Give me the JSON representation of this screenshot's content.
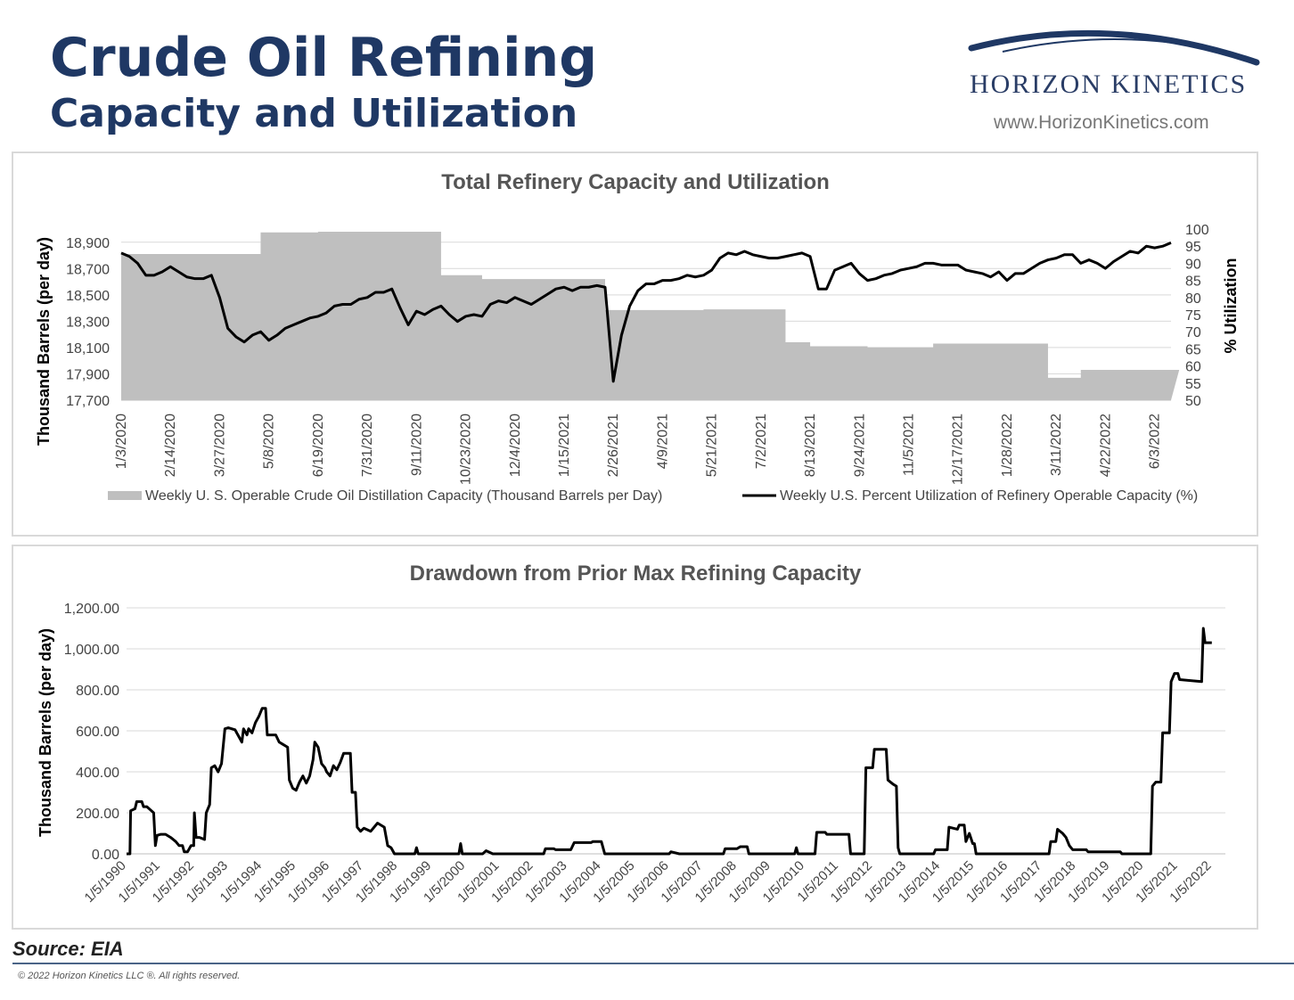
{
  "header": {
    "title_line1": "Crude Oil Refining",
    "title_line2": "Capacity and Utilization",
    "logo_text": "HORIZON KINETICS",
    "logo_url": "www.HorizonKinetics.com",
    "brand_color": "#1f3864"
  },
  "footer": {
    "source": "Source: EIA",
    "copyright": "© 2022 Horizon Kinetics LLC ®.  All rights reserved."
  },
  "chart_data": [
    {
      "type": "area+line",
      "title": "Total Refinery Capacity and Utilization",
      "ylabel": "Thousand Barrels (per day)",
      "y2label": "% Utilization",
      "ylim": [
        17700,
        19000
      ],
      "y2lim": [
        50,
        100
      ],
      "yticks": [
        "17,700",
        "17,900",
        "18,100",
        "18,300",
        "18,500",
        "18,700",
        "18,900"
      ],
      "y2ticks": [
        "50",
        "55",
        "60",
        "65",
        "70",
        "75",
        "80",
        "85",
        "90",
        "95",
        "100"
      ],
      "xticks": [
        "1/3/2020",
        "2/14/2020",
        "3/27/2020",
        "5/8/2020",
        "6/19/2020",
        "7/31/2020",
        "9/11/2020",
        "10/23/2020",
        "12/4/2020",
        "1/15/2021",
        "2/26/2021",
        "4/9/2021",
        "5/21/2021",
        "7/2/2021",
        "8/13/2021",
        "9/24/2021",
        "11/5/2021",
        "12/17/2021",
        "1/28/2022",
        "3/11/2022",
        "4/22/2022",
        "6/3/2022"
      ],
      "legend": [
        {
          "label": "Weekly U. S. Operable Crude Oil Distillation Capacity  (Thousand Barrels per Day)",
          "color": "#bfbfbf",
          "kind": "area"
        },
        {
          "label": "Weekly U.S. Percent Utilization of Refinery Operable Capacity (%)",
          "color": "#000000",
          "kind": "line"
        }
      ],
      "week_count": 129,
      "capacity_series": [
        [
          0,
          18810
        ],
        [
          17,
          18810
        ],
        [
          17,
          18975
        ],
        [
          24,
          18975
        ],
        [
          24,
          18980
        ],
        [
          39,
          18980
        ],
        [
          39,
          18650
        ],
        [
          44,
          18650
        ],
        [
          44,
          18620
        ],
        [
          59,
          18620
        ],
        [
          59,
          18385
        ],
        [
          71,
          18385
        ],
        [
          71,
          18390
        ],
        [
          81,
          18390
        ],
        [
          81,
          18140
        ],
        [
          84,
          18140
        ],
        [
          84,
          18110
        ],
        [
          91,
          18110
        ],
        [
          91,
          18100
        ],
        [
          95,
          18100
        ],
        [
          95,
          18100
        ],
        [
          99,
          18100
        ],
        [
          99,
          18130
        ],
        [
          112,
          18130
        ],
        [
          112,
          18130
        ],
        [
          113,
          18130
        ],
        [
          113,
          17870
        ],
        [
          117,
          17870
        ],
        [
          117,
          17930
        ],
        [
          129,
          17930
        ]
      ],
      "utilization_series": [
        [
          0,
          93
        ],
        [
          1,
          92
        ],
        [
          2,
          90
        ],
        [
          3,
          86.5
        ],
        [
          4,
          86.5
        ],
        [
          5,
          87.5
        ],
        [
          6,
          89
        ],
        [
          7,
          87.5
        ],
        [
          8,
          86
        ],
        [
          9,
          85.5
        ],
        [
          10,
          85.5
        ],
        [
          11,
          86.5
        ],
        [
          12,
          80
        ],
        [
          13,
          71
        ],
        [
          14,
          68.5
        ],
        [
          15,
          67
        ],
        [
          16,
          69
        ],
        [
          17,
          70
        ],
        [
          18,
          67.5
        ],
        [
          19,
          69
        ],
        [
          20,
          71
        ],
        [
          21,
          72
        ],
        [
          22,
          73
        ],
        [
          23,
          74
        ],
        [
          24,
          74.5
        ],
        [
          25,
          75.5
        ],
        [
          26,
          77.5
        ],
        [
          27,
          78
        ],
        [
          28,
          78
        ],
        [
          29,
          79.5
        ],
        [
          30,
          80
        ],
        [
          31,
          81.5
        ],
        [
          32,
          81.5
        ],
        [
          33,
          82.5
        ],
        [
          34,
          77
        ],
        [
          35,
          72
        ],
        [
          36,
          76
        ],
        [
          37,
          75
        ],
        [
          38,
          76.5
        ],
        [
          39,
          77.5
        ],
        [
          40,
          75
        ],
        [
          41,
          73
        ],
        [
          42,
          74.5
        ],
        [
          43,
          75
        ],
        [
          44,
          74.5
        ],
        [
          45,
          78
        ],
        [
          46,
          79
        ],
        [
          47,
          78.5
        ],
        [
          48,
          80
        ],
        [
          49,
          79
        ],
        [
          50,
          78
        ],
        [
          51,
          79.5
        ],
        [
          52,
          81
        ],
        [
          53,
          82.5
        ],
        [
          54,
          83
        ],
        [
          55,
          82
        ],
        [
          56,
          83
        ],
        [
          57,
          83
        ],
        [
          58,
          83.5
        ],
        [
          59,
          83
        ],
        [
          60,
          55.5
        ],
        [
          61,
          69
        ],
        [
          62,
          77.5
        ],
        [
          63,
          82
        ],
        [
          64,
          84
        ],
        [
          65,
          84
        ],
        [
          66,
          85
        ],
        [
          67,
          85
        ],
        [
          68,
          85.5
        ],
        [
          69,
          86.5
        ],
        [
          70,
          86
        ],
        [
          71,
          86.5
        ],
        [
          72,
          88
        ],
        [
          73,
          91.5
        ],
        [
          74,
          93
        ],
        [
          75,
          92.5
        ],
        [
          76,
          93.5
        ],
        [
          77,
          92.5
        ],
        [
          78,
          92
        ],
        [
          79,
          91.5
        ],
        [
          80,
          91.5
        ],
        [
          81,
          92
        ],
        [
          82,
          92.5
        ],
        [
          83,
          93
        ],
        [
          84,
          92
        ],
        [
          85,
          82.5
        ],
        [
          86,
          82.5
        ],
        [
          87,
          88
        ],
        [
          88,
          89
        ],
        [
          89,
          90
        ],
        [
          90,
          87
        ],
        [
          91,
          85
        ],
        [
          92,
          85.5
        ],
        [
          93,
          86.5
        ],
        [
          94,
          87
        ],
        [
          95,
          88
        ],
        [
          96,
          88.5
        ],
        [
          97,
          89
        ],
        [
          98,
          90
        ],
        [
          99,
          90
        ],
        [
          100,
          89.5
        ],
        [
          101,
          89.5
        ],
        [
          102,
          89.5
        ],
        [
          103,
          88
        ],
        [
          104,
          87.5
        ],
        [
          105,
          87
        ],
        [
          106,
          86
        ],
        [
          107,
          87.5
        ],
        [
          108,
          85
        ],
        [
          109,
          87
        ],
        [
          110,
          87
        ],
        [
          111,
          88.5
        ],
        [
          112,
          90
        ],
        [
          113,
          91
        ],
        [
          114,
          91.5
        ],
        [
          115,
          92.5
        ],
        [
          116,
          92.5
        ],
        [
          117,
          90
        ],
        [
          118,
          91
        ],
        [
          119,
          90
        ],
        [
          120,
          88.5
        ],
        [
          121,
          90.5
        ],
        [
          122,
          92
        ],
        [
          123,
          93.5
        ],
        [
          124,
          93
        ],
        [
          125,
          95
        ],
        [
          126,
          94.5
        ],
        [
          127,
          95
        ],
        [
          128,
          96
        ]
      ]
    },
    {
      "type": "line",
      "title": "Drawdown from Prior Max Refining Capacity",
      "ylabel": "Thousand Barrels (per day)",
      "ylim": [
        0,
        1200
      ],
      "yticks": [
        "0.00",
        "200.00",
        "400.00",
        "600.00",
        "800.00",
        "1,000.00",
        "1,200.00"
      ],
      "xrange": [
        1990.0,
        2022.4
      ],
      "xticks": [
        "1/5/1990",
        "1/5/1991",
        "1/5/1992",
        "1/5/1993",
        "1/5/1994",
        "1/5/1995",
        "1/5/1996",
        "1/5/1997",
        "1/5/1998",
        "1/5/1999",
        "1/5/2000",
        "1/5/2001",
        "1/5/2002",
        "1/5/2003",
        "1/5/2004",
        "1/5/2005",
        "1/5/2006",
        "1/5/2007",
        "1/5/2008",
        "1/5/2009",
        "1/5/2010",
        "1/5/2011",
        "1/5/2012",
        "1/5/2013",
        "1/5/2014",
        "1/5/2015",
        "1/5/2016",
        "1/5/2017",
        "1/5/2018",
        "1/5/2019",
        "1/5/2020",
        "1/5/2021",
        "1/5/2022"
      ],
      "series": [
        [
          1990.0,
          0
        ],
        [
          1990.1,
          0
        ],
        [
          1990.12,
          210
        ],
        [
          1990.25,
          220
        ],
        [
          1990.3,
          255
        ],
        [
          1990.45,
          255
        ],
        [
          1990.5,
          230
        ],
        [
          1990.6,
          230
        ],
        [
          1990.7,
          215
        ],
        [
          1990.8,
          200
        ],
        [
          1990.85,
          40
        ],
        [
          1990.9,
          90
        ],
        [
          1991.0,
          95
        ],
        [
          1991.15,
          95
        ],
        [
          1991.3,
          80
        ],
        [
          1991.45,
          60
        ],
        [
          1991.55,
          40
        ],
        [
          1991.65,
          40
        ],
        [
          1991.7,
          10
        ],
        [
          1991.8,
          10
        ],
        [
          1991.9,
          40
        ],
        [
          1991.98,
          40
        ],
        [
          1992.0,
          200
        ],
        [
          1992.05,
          80
        ],
        [
          1992.15,
          80
        ],
        [
          1992.3,
          70
        ],
        [
          1992.35,
          200
        ],
        [
          1992.45,
          240
        ],
        [
          1992.5,
          420
        ],
        [
          1992.6,
          430
        ],
        [
          1992.7,
          400
        ],
        [
          1992.8,
          440
        ],
        [
          1992.9,
          610
        ],
        [
          1993.0,
          615
        ],
        [
          1993.2,
          605
        ],
        [
          1993.3,
          575
        ],
        [
          1993.4,
          545
        ],
        [
          1993.45,
          610
        ],
        [
          1993.55,
          580
        ],
        [
          1993.6,
          610
        ],
        [
          1993.7,
          590
        ],
        [
          1993.8,
          640
        ],
        [
          1993.9,
          670
        ],
        [
          1994.0,
          710
        ],
        [
          1994.1,
          710
        ],
        [
          1994.15,
          580
        ],
        [
          1994.4,
          580
        ],
        [
          1994.5,
          545
        ],
        [
          1994.6,
          535
        ],
        [
          1994.75,
          520
        ],
        [
          1994.8,
          360
        ],
        [
          1994.9,
          320
        ],
        [
          1995.0,
          310
        ],
        [
          1995.1,
          350
        ],
        [
          1995.2,
          380
        ],
        [
          1995.3,
          345
        ],
        [
          1995.4,
          380
        ],
        [
          1995.5,
          460
        ],
        [
          1995.55,
          545
        ],
        [
          1995.65,
          520
        ],
        [
          1995.75,
          440
        ],
        [
          1995.85,
          420
        ],
        [
          1995.9,
          400
        ],
        [
          1996.0,
          380
        ],
        [
          1996.1,
          430
        ],
        [
          1996.2,
          410
        ],
        [
          1996.3,
          445
        ],
        [
          1996.4,
          490
        ],
        [
          1996.6,
          490
        ],
        [
          1996.65,
          300
        ],
        [
          1996.75,
          300
        ],
        [
          1996.8,
          130
        ],
        [
          1996.9,
          110
        ],
        [
          1997.0,
          125
        ],
        [
          1997.2,
          110
        ],
        [
          1997.4,
          150
        ],
        [
          1997.6,
          130
        ],
        [
          1997.7,
          40
        ],
        [
          1997.8,
          30
        ],
        [
          1997.9,
          0
        ],
        [
          1998.5,
          0
        ],
        [
          1998.55,
          30
        ],
        [
          1998.6,
          0
        ],
        [
          1999.8,
          0
        ],
        [
          1999.85,
          50
        ],
        [
          1999.9,
          0
        ],
        [
          2000.5,
          0
        ],
        [
          2000.6,
          15
        ],
        [
          2000.8,
          0
        ],
        [
          2002.3,
          0
        ],
        [
          2002.35,
          25
        ],
        [
          2002.6,
          25
        ],
        [
          2002.65,
          20
        ],
        [
          2003.1,
          20
        ],
        [
          2003.2,
          55
        ],
        [
          2003.7,
          55
        ],
        [
          2003.75,
          60
        ],
        [
          2004.0,
          60
        ],
        [
          2004.1,
          0
        ],
        [
          2006.0,
          0
        ],
        [
          2006.05,
          10
        ],
        [
          2006.3,
          0
        ],
        [
          2007.6,
          0
        ],
        [
          2007.65,
          25
        ],
        [
          2008.0,
          25
        ],
        [
          2008.1,
          35
        ],
        [
          2008.3,
          35
        ],
        [
          2008.35,
          0
        ],
        [
          2009.7,
          0
        ],
        [
          2009.75,
          30
        ],
        [
          2009.8,
          0
        ],
        [
          2010.3,
          0
        ],
        [
          2010.35,
          105
        ],
        [
          2010.6,
          105
        ],
        [
          2010.65,
          95
        ],
        [
          2011.0,
          95
        ],
        [
          2011.3,
          95
        ],
        [
          2011.35,
          0
        ],
        [
          2011.75,
          0
        ],
        [
          2011.8,
          420
        ],
        [
          2012.0,
          420
        ],
        [
          2012.05,
          510
        ],
        [
          2012.4,
          510
        ],
        [
          2012.45,
          360
        ],
        [
          2012.6,
          340
        ],
        [
          2012.7,
          330
        ],
        [
          2012.75,
          30
        ],
        [
          2012.8,
          0
        ],
        [
          2013.8,
          0
        ],
        [
          2013.85,
          20
        ],
        [
          2014.2,
          20
        ],
        [
          2014.25,
          130
        ],
        [
          2014.5,
          120
        ],
        [
          2014.55,
          140
        ],
        [
          2014.7,
          140
        ],
        [
          2014.75,
          60
        ],
        [
          2014.85,
          100
        ],
        [
          2014.95,
          50
        ],
        [
          2015.0,
          50
        ],
        [
          2015.05,
          0
        ],
        [
          2017.2,
          0
        ],
        [
          2017.25,
          60
        ],
        [
          2017.4,
          60
        ],
        [
          2017.45,
          120
        ],
        [
          2017.6,
          100
        ],
        [
          2017.7,
          80
        ],
        [
          2017.8,
          40
        ],
        [
          2017.9,
          20
        ],
        [
          2018.3,
          20
        ],
        [
          2018.35,
          10
        ],
        [
          2019.3,
          10
        ],
        [
          2019.35,
          0
        ],
        [
          2020.2,
          0
        ],
        [
          2020.25,
          330
        ],
        [
          2020.35,
          350
        ],
        [
          2020.5,
          350
        ],
        [
          2020.55,
          590
        ],
        [
          2020.75,
          590
        ],
        [
          2020.8,
          840
        ],
        [
          2020.9,
          880
        ],
        [
          2021.0,
          880
        ],
        [
          2021.05,
          850
        ],
        [
          2021.7,
          840
        ],
        [
          2021.75,
          1100
        ],
        [
          2021.8,
          1030
        ],
        [
          2022.0,
          1030
        ]
      ]
    }
  ]
}
